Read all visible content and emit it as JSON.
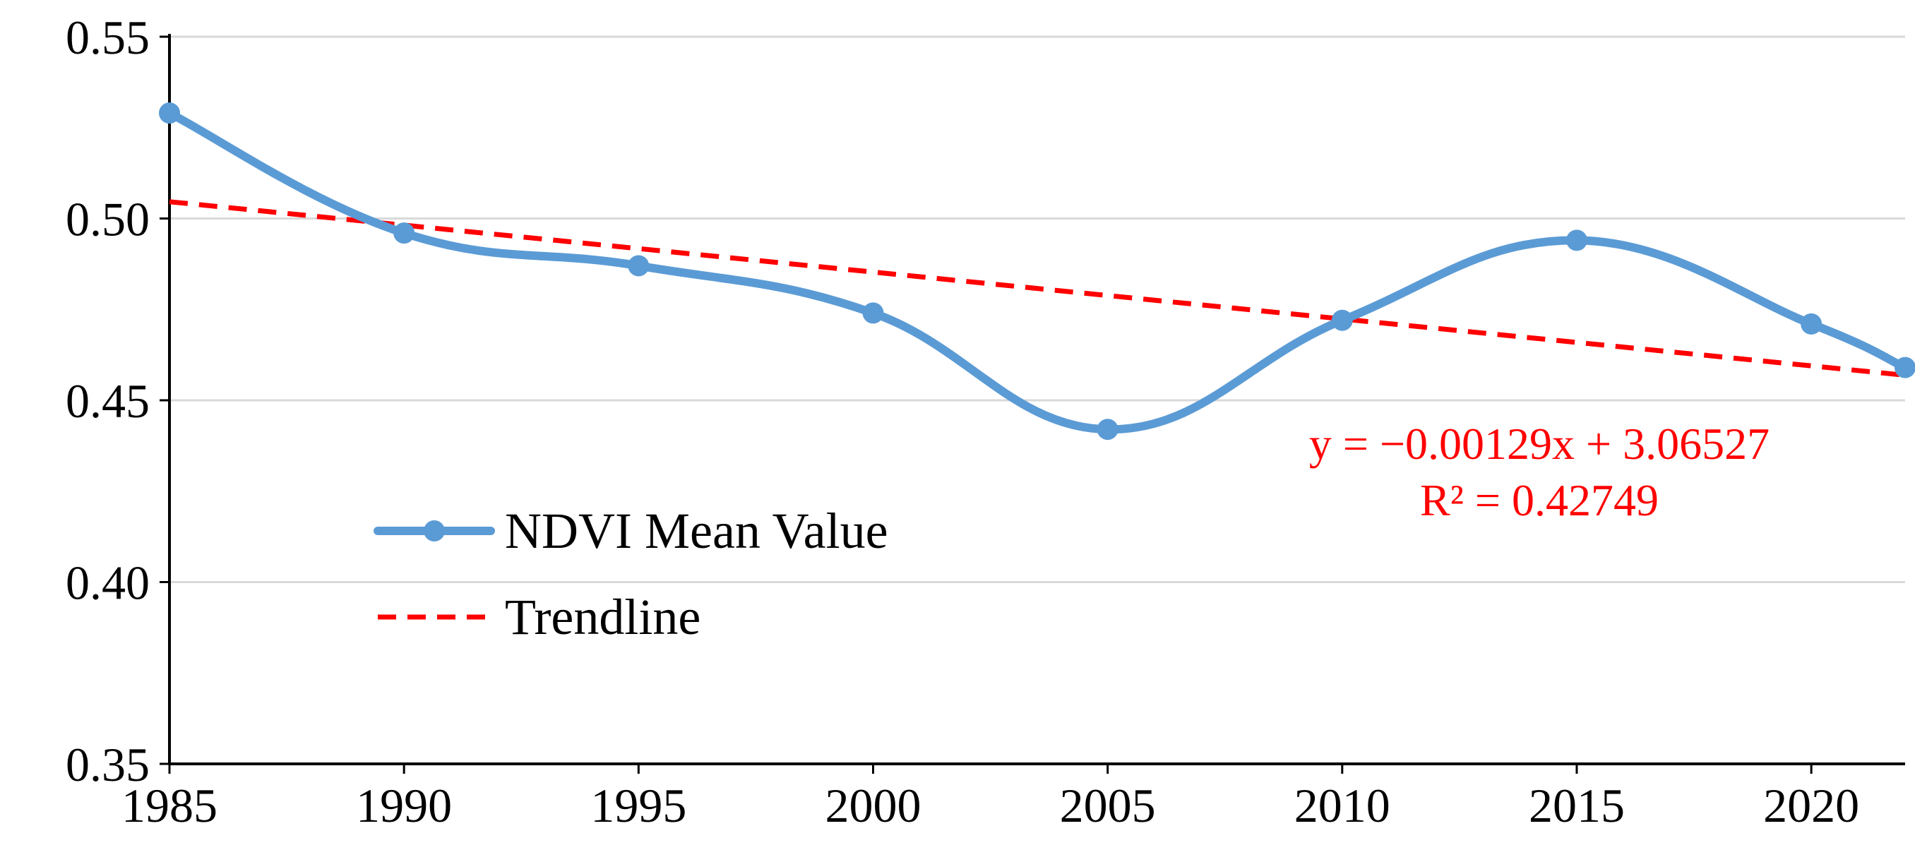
{
  "chart_data": {
    "type": "line",
    "title": "",
    "xlabel": "",
    "ylabel": "",
    "x": [
      1985,
      1990,
      1995,
      2000,
      2005,
      2010,
      2015,
      2020,
      2022
    ],
    "x_ticks": [
      "1985",
      "1990",
      "1995",
      "2000",
      "2005",
      "2010",
      "2015",
      "2020"
    ],
    "y_ticks": [
      "0.55",
      "0.50",
      "0.45",
      "0.40",
      "0.35"
    ],
    "xlim": [
      1985,
      2022
    ],
    "ylim": [
      0.35,
      0.55
    ],
    "grid": "horizontal",
    "legend_position": "lower-left",
    "series": [
      {
        "name": "NDVI Mean Value",
        "color": "#5b9bd5",
        "style": "smooth-line-with-markers",
        "values": [
          0.529,
          0.496,
          0.487,
          0.474,
          0.442,
          0.472,
          0.494,
          0.471,
          0.459
        ]
      },
      {
        "name": "Trendline",
        "color": "#ff0000",
        "style": "dashed",
        "slope": -0.00129,
        "intercept": 3.06527
      }
    ],
    "annotations": {
      "equation": "y = −0.00129x + 3.06527",
      "r_squared": "R² = 0.42749",
      "color": "#ff0000"
    }
  }
}
